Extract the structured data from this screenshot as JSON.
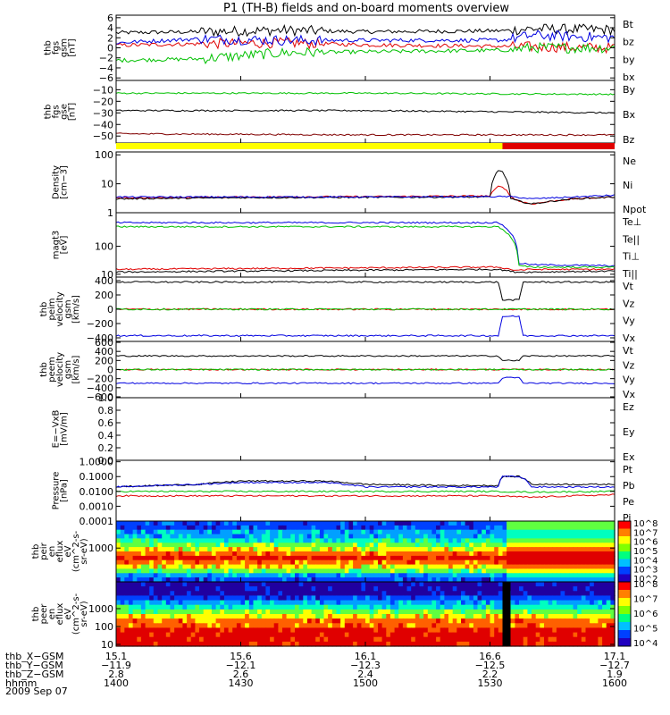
{
  "title": "P1 (TH-B) fields and on-board moments overview",
  "date": "2009 Sep 07",
  "panels": [
    {
      "id": "fgs_gsm",
      "ylabel": [
        "thb",
        "fgs",
        "gsm",
        "[nT]"
      ],
      "ticks": [
        "6",
        "4",
        "2",
        "0",
        "−2",
        "−4",
        "−6"
      ],
      "tickvals": [
        6,
        4,
        2,
        0,
        -2,
        -4,
        -6
      ],
      "ylim": [
        -6.5,
        6.5
      ],
      "legend": [
        {
          "name": "Bt",
          "color": "#000000"
        },
        {
          "name": "bz",
          "color": "#e00000"
        },
        {
          "name": "by",
          "color": "#00c000"
        },
        {
          "name": "bx",
          "color": "#0000e0"
        }
      ]
    },
    {
      "id": "fgs_gse",
      "ylabel": [
        "thb",
        "fgs",
        "gse",
        "[nT]"
      ],
      "ticks": [
        "−10",
        "−20",
        "−30",
        "−40",
        "−50"
      ],
      "tickvals": [
        -10,
        -20,
        -30,
        -40,
        -50
      ],
      "ylim": [
        -56,
        -2
      ],
      "legend": [
        {
          "name": "By",
          "color": "#00c000"
        },
        {
          "name": "Bx",
          "color": "#000000"
        },
        {
          "name": "Bz",
          "color": "#800000"
        }
      ]
    },
    {
      "id": "density",
      "ylabel": [
        "Density",
        "[cm−3]"
      ],
      "ticks": [
        "100",
        "10",
        "1"
      ],
      "tickvals": [
        2,
        1,
        0
      ],
      "ylim": [
        0,
        2.1
      ],
      "log": true,
      "legend": [
        {
          "name": "Ne",
          "color": "#e00000"
        },
        {
          "name": "Ni",
          "color": "#000000"
        },
        {
          "name": "Npot",
          "color": "#0000e0"
        }
      ]
    },
    {
      "id": "temperature",
      "ylabel": [
        "magt3",
        "[eV]"
      ],
      "ticks": [
        "100",
        "10"
      ],
      "tickvals": [
        2,
        1
      ],
      "ylim": [
        0.9,
        3.2
      ],
      "log": true,
      "legend": [
        {
          "name": "Te⊥",
          "color": "#e00000"
        },
        {
          "name": "Te||",
          "color": "#000000"
        },
        {
          "name": "Ti⊥",
          "color": "#0000e0"
        },
        {
          "name": "Ti||",
          "color": "#00c000"
        }
      ]
    },
    {
      "id": "peim_velocity",
      "ylabel": [
        "thb",
        "peim",
        "velocity",
        "gsm",
        "[km/s]"
      ],
      "ticks": [
        "400",
        "200",
        "0",
        "−200",
        "−400"
      ],
      "tickvals": [
        400,
        200,
        0,
        -200,
        -400
      ],
      "ylim": [
        -450,
        450
      ],
      "legend": [
        {
          "name": "Vt",
          "color": "#000000"
        },
        {
          "name": "Vz",
          "color": "#e00000"
        },
        {
          "name": "Vy",
          "color": "#00c000"
        },
        {
          "name": "Vx",
          "color": "#0000e0"
        }
      ]
    },
    {
      "id": "peem_velocity",
      "ylabel": [
        "thb",
        "peem",
        "velocity",
        "gsm",
        "[km/s]"
      ],
      "ticks": [
        "600",
        "400",
        "200",
        "0",
        "−200",
        "−400",
        "−600"
      ],
      "tickvals": [
        600,
        400,
        200,
        0,
        -200,
        -400,
        -600
      ],
      "ylim": [
        -620,
        620
      ],
      "legend": [
        {
          "name": "Vt",
          "color": "#000000"
        },
        {
          "name": "Vz",
          "color": "#e00000"
        },
        {
          "name": "Vy",
          "color": "#00c000"
        },
        {
          "name": "Vx",
          "color": "#0000e0"
        }
      ]
    },
    {
      "id": "efield",
      "ylabel": [
        "E=−VxB",
        "[mV/m]"
      ],
      "ticks": [
        "1.0",
        "0.8",
        "0.6",
        "0.4",
        "0.2",
        "0.0"
      ],
      "tickvals": [
        1.0,
        0.8,
        0.6,
        0.4,
        0.2,
        0.0
      ],
      "ylim": [
        0,
        1
      ],
      "legend": [
        {
          "name": "Ez",
          "color": "#e00000"
        },
        {
          "name": "Ey",
          "color": "#00c000"
        },
        {
          "name": "Ex",
          "color": "#0000e0"
        }
      ]
    },
    {
      "id": "pressure",
      "ylabel": [
        "Pressure",
        "[nPa]"
      ],
      "ticks": [
        "1.0000",
        "0.1000",
        "0.0100",
        "0.0010",
        "0.0001"
      ],
      "tickvals": [
        0,
        -1,
        -2,
        -3,
        -4
      ],
      "ylim": [
        -4,
        0.1
      ],
      "log": true,
      "legend": [
        {
          "name": "Pt",
          "color": "#000000"
        },
        {
          "name": "Pb",
          "color": "#e00000"
        },
        {
          "name": "Pe",
          "color": "#00c000"
        },
        {
          "name": "Pi",
          "color": "#0000e0"
        }
      ]
    },
    {
      "id": "peir_spec",
      "ylabel": [
        "thb",
        "peir",
        "en",
        "eflux",
        "eV",
        "(cm^2-s-",
        "sr-eV)"
      ],
      "ticks": [
        "1000"
      ],
      "tickvals": [
        3
      ],
      "ylim": [
        1,
        4.6
      ],
      "log": true,
      "spectrogram": true,
      "cbar": [
        "10^8",
        "10^7",
        "10^6",
        "10^5",
        "10^4",
        "10^3",
        "10^2"
      ]
    },
    {
      "id": "peer_spec",
      "ylabel": [
        "thb",
        "peer",
        "en",
        "eflux",
        "eV",
        "(cm^2-s-",
        "sr-eV)"
      ],
      "ticks": [
        "1000",
        "100",
        "10"
      ],
      "tickvals": [
        3,
        2,
        1
      ],
      "ylim": [
        0.9,
        4.5
      ],
      "log": true,
      "spectrogram": true,
      "cbar": [
        "10^8",
        "10^7",
        "10^6",
        "10^5",
        "10^4"
      ]
    }
  ],
  "xaxis": {
    "rows": [
      {
        "label": "thb_X−GSM",
        "values": [
          "15.1",
          "15.6",
          "16.1",
          "16.6",
          "17.1"
        ]
      },
      {
        "label": "thb_Y−GSM",
        "values": [
          "−11.9",
          "−12.1",
          "−12.3",
          "−12.5",
          "−12.7"
        ]
      },
      {
        "label": "thb_Z−GSM",
        "values": [
          "2.8",
          "2.6",
          "2.4",
          "2.2",
          "1.9"
        ]
      },
      {
        "label": "hhmm",
        "values": [
          "1400",
          "1430",
          "1500",
          "1530",
          "1600"
        ]
      }
    ],
    "time_ticks_min": [
      0,
      30,
      60,
      90,
      120
    ],
    "t_range_min": [
      0,
      120
    ]
  },
  "events": {
    "boundary_time_min": 93,
    "mode_bar": [
      {
        "from": 0,
        "to": 93,
        "color": "#ffff00"
      },
      {
        "from": 93,
        "to": 120,
        "color": "#e00000"
      }
    ]
  },
  "chart_data": {
    "type": "line",
    "title": "P1 (TH-B) fields and on-board moments overview",
    "x_unit": "minutes after 14:00 UT",
    "series": [
      {
        "panel": "fgs_gsm",
        "name": "Bt",
        "x": [
          0,
          20,
          40,
          60,
          80,
          93,
          100,
          120
        ],
        "values": [
          3.0,
          3.2,
          3.5,
          3.2,
          3.3,
          3.4,
          3.8,
          3.6
        ]
      },
      {
        "panel": "fgs_gsm",
        "name": "bz",
        "x": [
          0,
          20,
          40,
          60,
          80,
          93,
          100,
          120
        ],
        "values": [
          0.5,
          0.8,
          1.0,
          0.6,
          0.4,
          0.3,
          0.2,
          0.0
        ]
      },
      {
        "panel": "fgs_gsm",
        "name": "by",
        "x": [
          0,
          20,
          40,
          60,
          80,
          93,
          100,
          120
        ],
        "values": [
          -2.5,
          -2.2,
          -1.0,
          -0.8,
          -0.6,
          -0.5,
          0.0,
          0.0
        ]
      },
      {
        "panel": "fgs_gsm",
        "name": "bx",
        "x": [
          0,
          20,
          40,
          60,
          80,
          93,
          100,
          120
        ],
        "values": [
          1.0,
          1.8,
          1.5,
          1.5,
          1.5,
          1.5,
          2.5,
          2.0
        ]
      },
      {
        "panel": "fgs_gse",
        "name": "By",
        "x": [
          0,
          60,
          120
        ],
        "values": [
          -13,
          -13,
          -14
        ]
      },
      {
        "panel": "fgs_gse",
        "name": "Bx",
        "x": [
          0,
          60,
          120
        ],
        "values": [
          -28,
          -28,
          -30
        ]
      },
      {
        "panel": "fgs_gse",
        "name": "Bz",
        "x": [
          0,
          60,
          120
        ],
        "values": [
          -48,
          -49,
          -49
        ]
      },
      {
        "panel": "density",
        "name": "Ne",
        "x": [
          0,
          30,
          60,
          90,
          92,
          93,
          95,
          97,
          100,
          110,
          120
        ],
        "values": [
          3.2,
          3.5,
          3.6,
          3.8,
          8,
          8,
          3.5,
          2.5,
          2,
          3,
          3.5
        ]
      },
      {
        "panel": "density",
        "name": "Ni",
        "x": [
          0,
          30,
          60,
          90,
          92,
          93,
          95,
          97,
          100,
          110,
          120
        ],
        "values": [
          3.0,
          3.3,
          3.4,
          3.5,
          30,
          25,
          3,
          2.5,
          2,
          3,
          3.5
        ]
      },
      {
        "panel": "density",
        "name": "Npot",
        "x": [
          0,
          30,
          60,
          90,
          95,
          100,
          110,
          120
        ],
        "values": [
          3.5,
          3.5,
          3.5,
          3.6,
          3.6,
          3.0,
          3.5,
          4
        ]
      },
      {
        "panel": "temperature",
        "name": "Te⊥",
        "x": [
          0,
          30,
          60,
          90,
          92,
          96,
          100,
          120
        ],
        "values": [
          15,
          16,
          17,
          18,
          18,
          14,
          15,
          15
        ]
      },
      {
        "panel": "temperature",
        "name": "Te||",
        "x": [
          0,
          30,
          60,
          90,
          92,
          96,
          100,
          120
        ],
        "values": [
          12,
          13,
          14,
          15,
          15,
          12,
          12,
          13
        ]
      },
      {
        "panel": "temperature",
        "name": "Ti⊥",
        "x": [
          0,
          30,
          60,
          90,
          92,
          97,
          100,
          120
        ],
        "values": [
          700,
          700,
          700,
          700,
          700,
          25,
          22,
          20
        ]
      },
      {
        "panel": "temperature",
        "name": "Ti||",
        "x": [
          0,
          30,
          60,
          90,
          92,
          97,
          100,
          120
        ],
        "values": [
          500,
          500,
          500,
          500,
          500,
          20,
          18,
          18
        ]
      },
      {
        "panel": "peim_velocity",
        "name": "Vt",
        "x": [
          0,
          30,
          60,
          92,
          93,
          97,
          98,
          120
        ],
        "values": [
          380,
          380,
          380,
          380,
          130,
          130,
          380,
          380
        ]
      },
      {
        "panel": "peim_velocity",
        "name": "Vz",
        "x": [
          0,
          60,
          120
        ],
        "values": [
          0,
          0,
          0
        ]
      },
      {
        "panel": "peim_velocity",
        "name": "Vy",
        "x": [
          0,
          60,
          120
        ],
        "values": [
          0,
          0,
          0
        ]
      },
      {
        "panel": "peim_velocity",
        "name": "Vx",
        "x": [
          0,
          30,
          60,
          92,
          93,
          97,
          98,
          120
        ],
        "values": [
          -370,
          -370,
          -370,
          -370,
          -100,
          -100,
          -370,
          -370
        ]
      },
      {
        "panel": "peem_velocity",
        "name": "Vt",
        "x": [
          0,
          30,
          60,
          92,
          93,
          97,
          98,
          120
        ],
        "values": [
          300,
          300,
          300,
          300,
          200,
          200,
          300,
          300
        ]
      },
      {
        "panel": "peem_velocity",
        "name": "Vz",
        "x": [
          0,
          60,
          120
        ],
        "values": [
          0,
          0,
          0
        ]
      },
      {
        "panel": "peem_velocity",
        "name": "Vy",
        "x": [
          0,
          60,
          120
        ],
        "values": [
          0,
          0,
          0
        ]
      },
      {
        "panel": "peem_velocity",
        "name": "Vx",
        "x": [
          0,
          30,
          60,
          92,
          93,
          97,
          98,
          120
        ],
        "values": [
          -300,
          -300,
          -300,
          -300,
          -180,
          -180,
          -300,
          -300
        ]
      },
      {
        "panel": "pressure",
        "name": "Pt",
        "x": [
          0,
          20,
          30,
          50,
          60,
          80,
          92,
          93,
          97,
          100,
          120
        ],
        "values": [
          0.02,
          0.03,
          0.05,
          0.05,
          0.03,
          0.025,
          0.025,
          0.1,
          0.1,
          0.03,
          0.03
        ]
      },
      {
        "panel": "pressure",
        "name": "Pb",
        "x": [
          0,
          20,
          40,
          60,
          80,
          90,
          100,
          120
        ],
        "values": [
          0.005,
          0.005,
          0.005,
          0.005,
          0.005,
          0.005,
          0.004,
          0.006
        ]
      },
      {
        "panel": "pressure",
        "name": "Pe",
        "x": [
          0,
          30,
          60,
          90,
          100,
          120
        ],
        "values": [
          0.01,
          0.01,
          0.01,
          0.01,
          0.009,
          0.01
        ]
      },
      {
        "panel": "pressure",
        "name": "Pi",
        "x": [
          0,
          20,
          30,
          50,
          60,
          92,
          93,
          97,
          100,
          120
        ],
        "values": [
          0.02,
          0.03,
          0.04,
          0.04,
          0.02,
          0.02,
          0.1,
          0.1,
          0.02,
          0.02
        ]
      }
    ]
  }
}
